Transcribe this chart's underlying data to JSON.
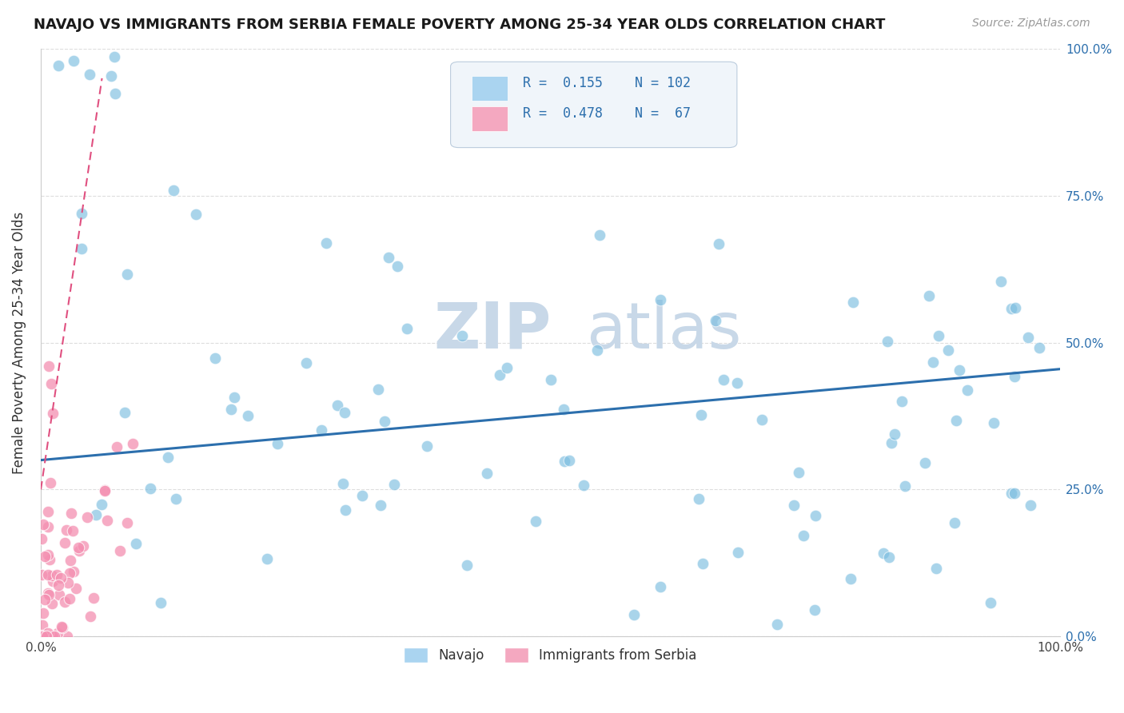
{
  "title": "NAVAJO VS IMMIGRANTS FROM SERBIA FEMALE POVERTY AMONG 25-34 YEAR OLDS CORRELATION CHART",
  "source": "Source: ZipAtlas.com",
  "ylabel": "Female Poverty Among 25-34 Year Olds",
  "xmin": 0.0,
  "xmax": 1.0,
  "ymin": 0.0,
  "ymax": 1.0,
  "navajo_R": 0.155,
  "navajo_N": 102,
  "serbia_R": 0.478,
  "serbia_N": 67,
  "navajo_color": "#7bbde0",
  "serbia_color": "#f48fb1",
  "navajo_line_color": "#2c6fad",
  "serbia_line_color": "#e05080",
  "legend_labels": [
    "Navajo",
    "Immigrants from Serbia"
  ],
  "navajo_line_y0": 0.3,
  "navajo_line_y1": 0.455,
  "serbia_line_x0": 0.0,
  "serbia_line_x1": 0.06,
  "serbia_line_y0": 0.25,
  "serbia_line_y1": 0.95,
  "xtick_labels": [
    "0.0%",
    "100.0%"
  ],
  "ytick_labels": [
    "0.0%",
    "25.0%",
    "50.0%",
    "75.0%",
    "100.0%"
  ],
  "ytick_vals": [
    0.0,
    0.25,
    0.5,
    0.75,
    1.0
  ],
  "xtick_vals": [
    0.0,
    1.0
  ],
  "grid_color": "#dddddd",
  "watermark_zip": "ZIP",
  "watermark_atlas": "atlas",
  "title_fontsize": 13,
  "source_fontsize": 10,
  "label_fontsize": 12
}
